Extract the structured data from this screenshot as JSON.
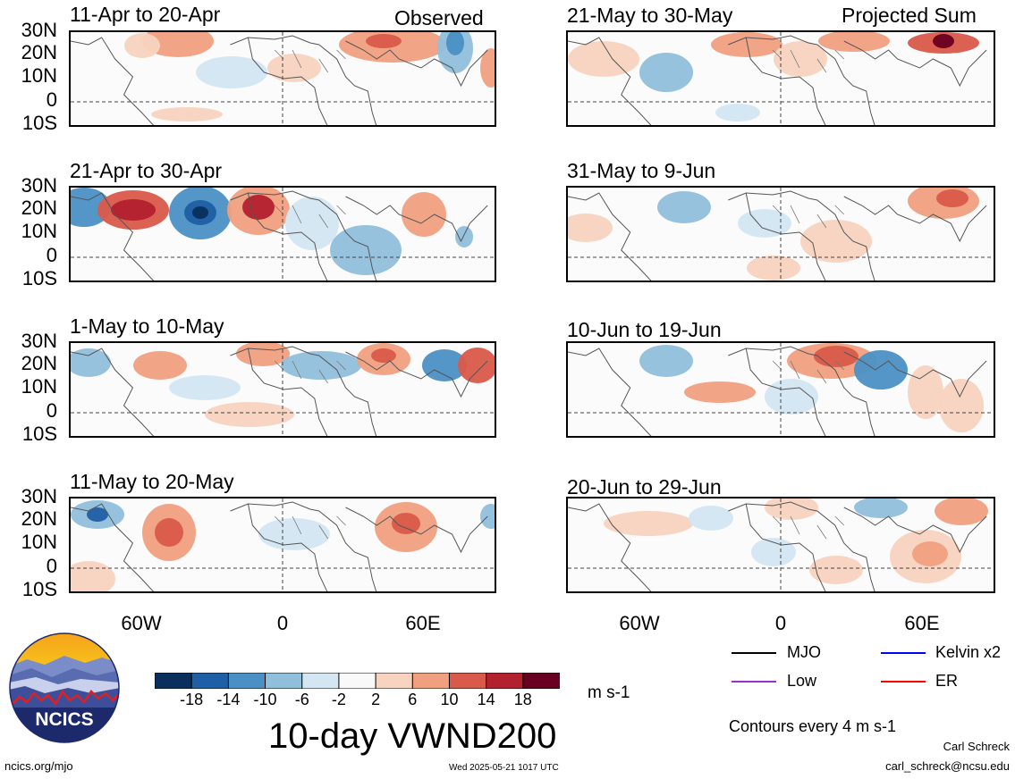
{
  "panels": {
    "observed_header": "Observed",
    "projected_header": "Projected Sum",
    "left": [
      {
        "title": "11-Apr to 20-Apr"
      },
      {
        "title": "21-Apr to 30-Apr"
      },
      {
        "title": "1-May to 10-May"
      },
      {
        "title": "11-May to 20-May"
      }
    ],
    "right": [
      {
        "title": "21-May to 30-May"
      },
      {
        "title": "31-May to 9-Jun"
      },
      {
        "title": "10-Jun to 19-Jun"
      },
      {
        "title": "20-Jun to 29-Jun"
      }
    ]
  },
  "axes": {
    "lat_labels": [
      "30N",
      "20N",
      "10N",
      "0",
      "10S"
    ],
    "lon_labels": [
      "60W",
      "0",
      "60E"
    ]
  },
  "colorbar": {
    "labels": [
      "-18",
      "-14",
      "-10",
      "-6",
      "-2",
      "2",
      "6",
      "10",
      "14",
      "18"
    ],
    "colors": [
      "#0a2f5c",
      "#1f5fa5",
      "#4a90c4",
      "#90bfdc",
      "#d3e6f2",
      "#f9f9f9",
      "#f8d3bf",
      "#f0a07f",
      "#d95a4a",
      "#b3202e",
      "#6a0020"
    ],
    "units": "m s-1"
  },
  "legend": {
    "items": [
      {
        "label": "MJO",
        "color": "#000000"
      },
      {
        "label": "Kelvin x2",
        "color": "#0000ff"
      },
      {
        "label": "Low",
        "color": "#9932cc"
      },
      {
        "label": "ER",
        "color": "#ff0000"
      }
    ],
    "contours_note": "Contours every 4 m s-1"
  },
  "footer": {
    "title": "10-day VWND200",
    "url": "ncics.org/mjo",
    "timestamp": "Wed 2025-05-21 1017 UTC",
    "author": "Carl Schreck",
    "email": "carl_schreck@ncsu.edu",
    "logo_text": "NCICS"
  }
}
